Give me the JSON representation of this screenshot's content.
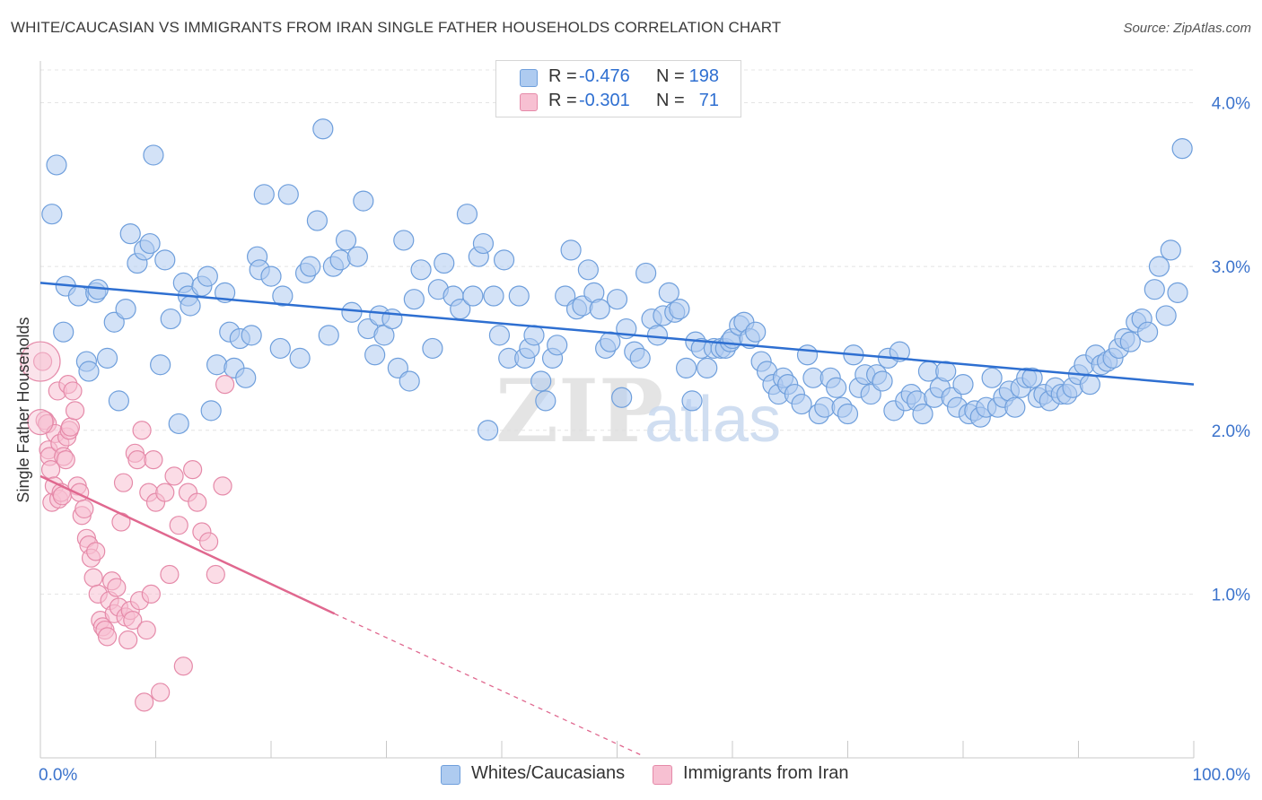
{
  "title": "WHITE/CAUCASIAN VS IMMIGRANTS FROM IRAN SINGLE FATHER HOUSEHOLDS CORRELATION CHART",
  "source": "Source: ZipAtlas.com",
  "watermark": {
    "zip": "ZIP",
    "atlas": "atlas"
  },
  "legend": {
    "rows": [
      {
        "r_label": "R =",
        "r_value": "-0.476",
        "n_label": "N =",
        "n_value": "198",
        "color": "#aecbf0",
        "border": "#6f9fdc"
      },
      {
        "r_label": "R =",
        "r_value": "-0.301",
        "n_label": "N =",
        "n_value": "71",
        "color": "#f7c0d2",
        "border": "#e58aa9"
      }
    ]
  },
  "bottom_legend": [
    {
      "label": "Whites/Caucasians",
      "color": "#aecbf0",
      "border": "#6f9fdc"
    },
    {
      "label": "Immigrants from Iran",
      "color": "#f7c0d2",
      "border": "#e58aa9"
    }
  ],
  "chart_data": {
    "type": "scatter",
    "title": "WHITE/CAUCASIAN VS IMMIGRANTS FROM IRAN SINGLE FATHER HOUSEHOLDS CORRELATION CHART",
    "xlabel": "",
    "ylabel": "Single Father Households",
    "xlim": [
      0,
      100
    ],
    "ylim": [
      0,
      4.2
    ],
    "x_tick_labels": [
      "0.0%",
      "100.0%"
    ],
    "y_ticks": [
      1.0,
      2.0,
      3.0,
      4.0
    ],
    "y_tick_labels": [
      "1.0%",
      "2.0%",
      "3.0%",
      "4.0%"
    ],
    "series": [
      {
        "name": "Whites/Caucasians",
        "color": "#6f9fdc",
        "fill": "#aecbf0",
        "trend": {
          "x": [
            0,
            100
          ],
          "y": [
            2.9,
            2.28
          ]
        },
        "points": [
          [
            1,
            3.32
          ],
          [
            1.4,
            3.62
          ],
          [
            2,
            2.6
          ],
          [
            2.2,
            2.88
          ],
          [
            3.3,
            2.82
          ],
          [
            4,
            2.42
          ],
          [
            4.2,
            2.36
          ],
          [
            4.8,
            2.84
          ],
          [
            5,
            2.86
          ],
          [
            5.8,
            2.44
          ],
          [
            6.4,
            2.66
          ],
          [
            6.8,
            2.18
          ],
          [
            7.4,
            2.74
          ],
          [
            7.8,
            3.2
          ],
          [
            8.4,
            3.02
          ],
          [
            9,
            3.1
          ],
          [
            9.5,
            3.14
          ],
          [
            9.8,
            3.68
          ],
          [
            10.4,
            2.4
          ],
          [
            10.8,
            3.04
          ],
          [
            11.3,
            2.68
          ],
          [
            12,
            2.04
          ],
          [
            12.4,
            2.9
          ],
          [
            12.8,
            2.82
          ],
          [
            13,
            2.76
          ],
          [
            14,
            2.88
          ],
          [
            14.5,
            2.94
          ],
          [
            14.8,
            2.12
          ],
          [
            15.3,
            2.4
          ],
          [
            16,
            2.84
          ],
          [
            16.4,
            2.6
          ],
          [
            16.8,
            2.38
          ],
          [
            17.3,
            2.56
          ],
          [
            17.8,
            2.32
          ],
          [
            18.3,
            2.58
          ],
          [
            18.8,
            3.06
          ],
          [
            19,
            2.98
          ],
          [
            19.4,
            3.44
          ],
          [
            20,
            2.94
          ],
          [
            20.8,
            2.5
          ],
          [
            21,
            2.82
          ],
          [
            21.5,
            3.44
          ],
          [
            22.5,
            2.44
          ],
          [
            23,
            2.96
          ],
          [
            23.4,
            3.0
          ],
          [
            24,
            3.28
          ],
          [
            24.5,
            3.84
          ],
          [
            25,
            2.58
          ],
          [
            25.4,
            3.0
          ],
          [
            26,
            3.04
          ],
          [
            26.5,
            3.16
          ],
          [
            27,
            2.72
          ],
          [
            27.5,
            3.06
          ],
          [
            28,
            3.4
          ],
          [
            28.4,
            2.62
          ],
          [
            29,
            2.46
          ],
          [
            29.4,
            2.7
          ],
          [
            29.8,
            2.58
          ],
          [
            30.5,
            2.68
          ],
          [
            31,
            2.38
          ],
          [
            31.5,
            3.16
          ],
          [
            32,
            2.3
          ],
          [
            32.4,
            2.8
          ],
          [
            33,
            2.98
          ],
          [
            34,
            2.5
          ],
          [
            34.5,
            2.86
          ],
          [
            35,
            3.02
          ],
          [
            35.8,
            2.82
          ],
          [
            36.4,
            2.74
          ],
          [
            37,
            3.32
          ],
          [
            37.5,
            2.82
          ],
          [
            38,
            3.06
          ],
          [
            38.4,
            3.14
          ],
          [
            38.8,
            2.0
          ],
          [
            39.3,
            2.82
          ],
          [
            39.8,
            2.58
          ],
          [
            40.2,
            3.04
          ],
          [
            40.6,
            2.44
          ],
          [
            41.5,
            2.82
          ],
          [
            42,
            2.44
          ],
          [
            42.4,
            2.5
          ],
          [
            42.8,
            2.58
          ],
          [
            43.4,
            2.3
          ],
          [
            43.8,
            2.18
          ],
          [
            44.4,
            2.44
          ],
          [
            44.8,
            2.52
          ],
          [
            45.5,
            2.82
          ],
          [
            46,
            3.1
          ],
          [
            46.5,
            2.74
          ],
          [
            47,
            2.76
          ],
          [
            47.5,
            2.98
          ],
          [
            48,
            2.84
          ],
          [
            48.5,
            2.74
          ],
          [
            49,
            2.5
          ],
          [
            49.4,
            2.54
          ],
          [
            50,
            2.8
          ],
          [
            50.4,
            2.2
          ],
          [
            50.8,
            2.62
          ],
          [
            51.5,
            2.48
          ],
          [
            52,
            2.44
          ],
          [
            52.5,
            2.96
          ],
          [
            53,
            2.68
          ],
          [
            53.5,
            2.58
          ],
          [
            54,
            2.7
          ],
          [
            54.5,
            2.84
          ],
          [
            55,
            2.72
          ],
          [
            55.4,
            2.74
          ],
          [
            56,
            2.38
          ],
          [
            56.5,
            2.18
          ],
          [
            56.8,
            2.54
          ],
          [
            57.3,
            2.5
          ],
          [
            57.8,
            2.38
          ],
          [
            58.4,
            2.5
          ],
          [
            59,
            2.5
          ],
          [
            59.4,
            2.5
          ],
          [
            59.8,
            2.54
          ],
          [
            60,
            2.56
          ],
          [
            60.6,
            2.64
          ],
          [
            61,
            2.66
          ],
          [
            61.5,
            2.56
          ],
          [
            62,
            2.6
          ],
          [
            62.5,
            2.42
          ],
          [
            63,
            2.36
          ],
          [
            63.5,
            2.28
          ],
          [
            64,
            2.22
          ],
          [
            64.4,
            2.32
          ],
          [
            64.8,
            2.28
          ],
          [
            65.4,
            2.22
          ],
          [
            66,
            2.16
          ],
          [
            66.5,
            2.46
          ],
          [
            67,
            2.32
          ],
          [
            67.5,
            2.1
          ],
          [
            68,
            2.14
          ],
          [
            68.5,
            2.32
          ],
          [
            69,
            2.26
          ],
          [
            69.5,
            2.14
          ],
          [
            70,
            2.1
          ],
          [
            70.5,
            2.46
          ],
          [
            71,
            2.26
          ],
          [
            71.5,
            2.34
          ],
          [
            72,
            2.22
          ],
          [
            72.5,
            2.34
          ],
          [
            73,
            2.3
          ],
          [
            73.5,
            2.44
          ],
          [
            74,
            2.12
          ],
          [
            74.5,
            2.48
          ],
          [
            75,
            2.18
          ],
          [
            75.5,
            2.22
          ],
          [
            76,
            2.18
          ],
          [
            76.5,
            2.1
          ],
          [
            77,
            2.36
          ],
          [
            77.5,
            2.2
          ],
          [
            78,
            2.26
          ],
          [
            78.5,
            2.36
          ],
          [
            79,
            2.2
          ],
          [
            79.5,
            2.14
          ],
          [
            80,
            2.28
          ],
          [
            80.5,
            2.1
          ],
          [
            81,
            2.12
          ],
          [
            81.5,
            2.08
          ],
          [
            82,
            2.14
          ],
          [
            82.5,
            2.32
          ],
          [
            83,
            2.14
          ],
          [
            83.5,
            2.2
          ],
          [
            84,
            2.24
          ],
          [
            84.5,
            2.14
          ],
          [
            85,
            2.26
          ],
          [
            85.5,
            2.32
          ],
          [
            86,
            2.32
          ],
          [
            86.5,
            2.2
          ],
          [
            87,
            2.22
          ],
          [
            87.5,
            2.18
          ],
          [
            88,
            2.26
          ],
          [
            88.5,
            2.22
          ],
          [
            89,
            2.22
          ],
          [
            89.5,
            2.26
          ],
          [
            90,
            2.34
          ],
          [
            90.5,
            2.4
          ],
          [
            91,
            2.28
          ],
          [
            91.5,
            2.46
          ],
          [
            92,
            2.4
          ],
          [
            92.5,
            2.42
          ],
          [
            93,
            2.44
          ],
          [
            93.5,
            2.5
          ],
          [
            94,
            2.56
          ],
          [
            94.5,
            2.54
          ],
          [
            95,
            2.66
          ],
          [
            95.5,
            2.68
          ],
          [
            96,
            2.6
          ],
          [
            96.6,
            2.86
          ],
          [
            97,
            3.0
          ],
          [
            97.6,
            2.7
          ],
          [
            98,
            3.1
          ],
          [
            98.6,
            2.84
          ],
          [
            99,
            3.72
          ]
        ]
      },
      {
        "name": "Immigrants from Iran",
        "color": "#e58aa9",
        "fill": "#f7c0d2",
        "trend": {
          "x": [
            0,
            25.5
          ],
          "y": [
            1.72,
            0.88
          ]
        },
        "trend_dashed": {
          "x": [
            25.5,
            52
          ],
          "y": [
            0.88,
            0.02
          ]
        },
        "points": [
          [
            0.2,
            2.42
          ],
          [
            0.4,
            2.06
          ],
          [
            0.6,
            2.04
          ],
          [
            0.7,
            1.88
          ],
          [
            0.8,
            1.84
          ],
          [
            0.9,
            1.76
          ],
          [
            1.0,
            1.56
          ],
          [
            1.2,
            1.66
          ],
          [
            1.3,
            1.98
          ],
          [
            1.5,
            2.24
          ],
          [
            1.6,
            1.58
          ],
          [
            1.7,
            1.92
          ],
          [
            1.8,
            1.62
          ],
          [
            1.9,
            1.6
          ],
          [
            2.0,
            1.84
          ],
          [
            2.2,
            1.82
          ],
          [
            2.3,
            1.96
          ],
          [
            2.4,
            2.28
          ],
          [
            2.5,
            2.0
          ],
          [
            2.6,
            2.02
          ],
          [
            2.8,
            2.24
          ],
          [
            3.0,
            2.12
          ],
          [
            3.2,
            1.66
          ],
          [
            3.4,
            1.62
          ],
          [
            3.6,
            1.48
          ],
          [
            3.8,
            1.52
          ],
          [
            4.0,
            1.34
          ],
          [
            4.2,
            1.3
          ],
          [
            4.4,
            1.22
          ],
          [
            4.6,
            1.1
          ],
          [
            4.8,
            1.26
          ],
          [
            5.0,
            1.0
          ],
          [
            5.2,
            0.84
          ],
          [
            5.4,
            0.8
          ],
          [
            5.6,
            0.78
          ],
          [
            5.8,
            0.74
          ],
          [
            6.0,
            0.96
          ],
          [
            6.2,
            1.08
          ],
          [
            6.4,
            0.88
          ],
          [
            6.6,
            1.04
          ],
          [
            6.8,
            0.92
          ],
          [
            7.0,
            1.44
          ],
          [
            7.2,
            1.68
          ],
          [
            7.4,
            0.86
          ],
          [
            7.6,
            0.72
          ],
          [
            7.8,
            0.9
          ],
          [
            8.0,
            0.84
          ],
          [
            8.2,
            1.86
          ],
          [
            8.4,
            1.82
          ],
          [
            8.6,
            0.96
          ],
          [
            8.8,
            2.0
          ],
          [
            9.0,
            0.34
          ],
          [
            9.2,
            0.78
          ],
          [
            9.4,
            1.62
          ],
          [
            9.6,
            1.0
          ],
          [
            9.8,
            1.82
          ],
          [
            10.0,
            1.56
          ],
          [
            10.4,
            0.4
          ],
          [
            10.8,
            1.62
          ],
          [
            11.2,
            1.12
          ],
          [
            11.6,
            1.72
          ],
          [
            12.0,
            1.42
          ],
          [
            12.4,
            0.56
          ],
          [
            12.8,
            1.62
          ],
          [
            13.2,
            1.76
          ],
          [
            13.6,
            1.56
          ],
          [
            14.0,
            1.38
          ],
          [
            14.6,
            1.32
          ],
          [
            15.2,
            1.12
          ],
          [
            15.8,
            1.66
          ],
          [
            16.0,
            2.28
          ]
        ]
      }
    ]
  }
}
